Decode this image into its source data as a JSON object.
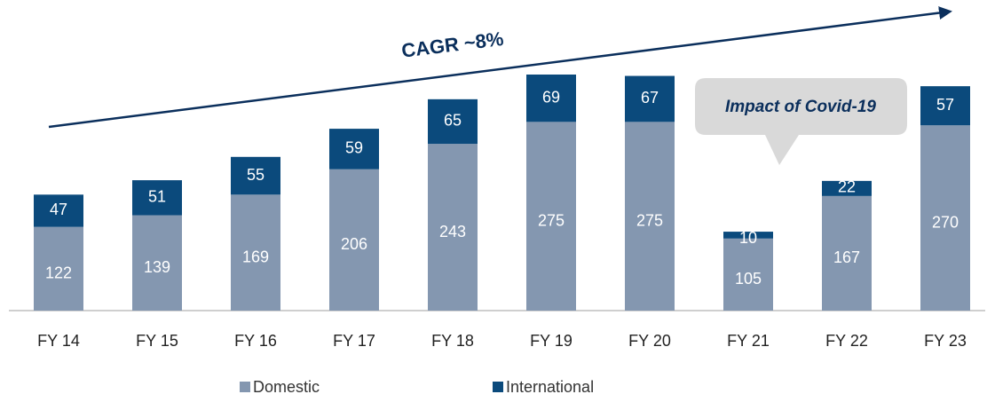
{
  "chart_data": {
    "type": "stacked_bar",
    "categories": [
      "FY 14",
      "FY 15",
      "FY 16",
      "FY 17",
      "FY 18",
      "FY 19",
      "FY 20",
      "FY 21",
      "FY 22",
      "FY 23"
    ],
    "series": [
      {
        "name": "Domestic",
        "color": "#8497b0",
        "values": [
          122,
          139,
          169,
          206,
          243,
          275,
          275,
          105,
          167,
          270
        ]
      },
      {
        "name": "International",
        "color": "#0b4a7c",
        "values": [
          47,
          51,
          55,
          59,
          65,
          69,
          67,
          10,
          22,
          57
        ]
      }
    ],
    "annotations": [
      "CAGR ~8%",
      "Impact of Covid-19"
    ],
    "legend": "bottom"
  }
}
